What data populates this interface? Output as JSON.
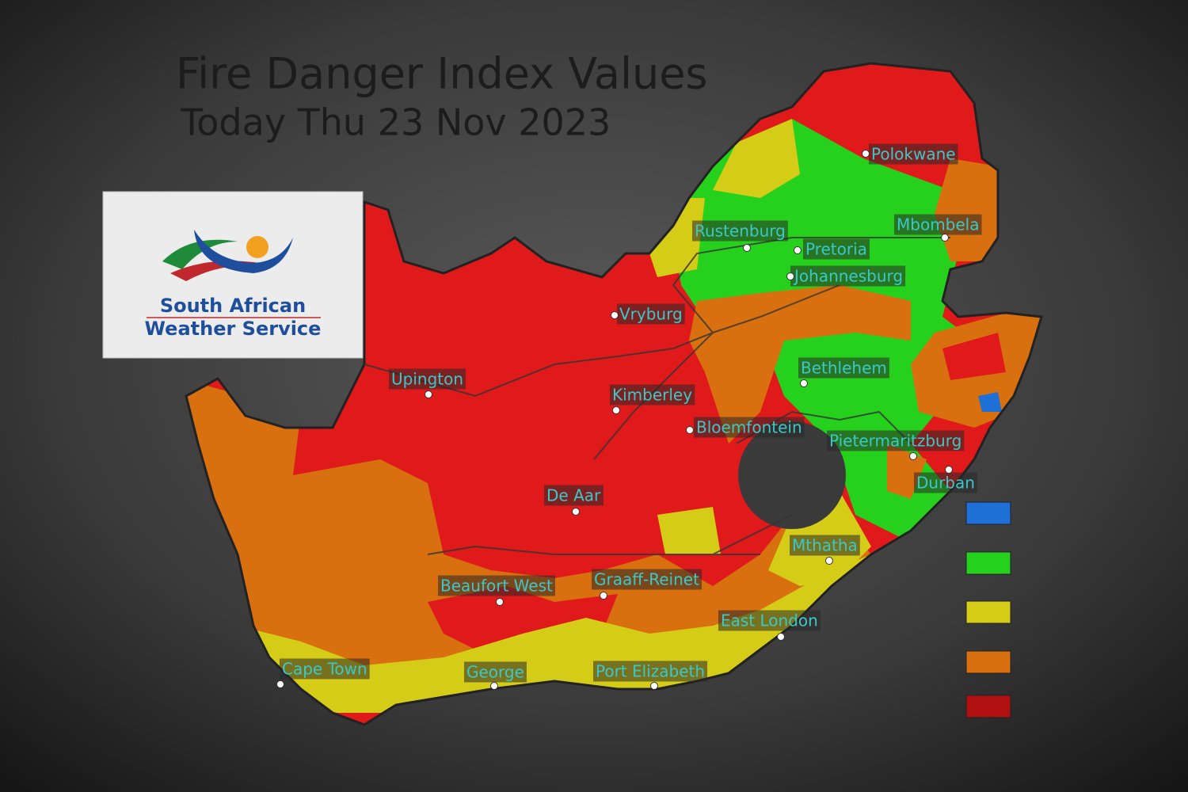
{
  "header": {
    "title": "Fire Danger Index Values",
    "subtitle": "Today Thu 23 Nov 2023"
  },
  "logo": {
    "line1": "South African",
    "line2": "Weather Service"
  },
  "map": {
    "cities": [
      "Polokwane",
      "Mbombela",
      "Rustenburg",
      "Pretoria",
      "Johannesburg",
      "Vryburg",
      "Upington",
      "Bethlehem",
      "Kimberley",
      "Bloemfontein",
      "Pietermaritzburg",
      "Durban",
      "De Aar",
      "Mthatha",
      "Beaufort West",
      "Graaff-Reinet",
      "East London",
      "Cape Town",
      "George",
      "Port Elizabeth"
    ]
  }
}
